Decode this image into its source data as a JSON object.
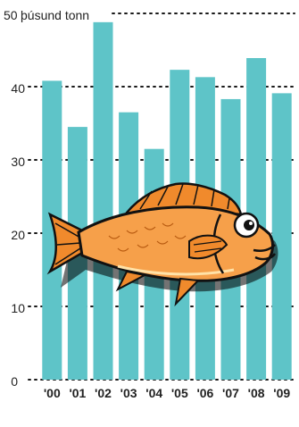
{
  "chart_data": {
    "type": "bar",
    "categories": [
      "'00",
      "'01",
      "'02",
      "'03",
      "'04",
      "'05",
      "'06",
      "'07",
      "'08",
      "'09"
    ],
    "values": [
      40.8,
      34.5,
      48.8,
      36.5,
      31.5,
      42.3,
      41.3,
      38.3,
      43.9,
      39.1
    ],
    "y_ticks": [
      0,
      10,
      20,
      30,
      40,
      50
    ],
    "y_tick_labels": [
      "0",
      "10",
      "20",
      "30",
      "40",
      "50"
    ],
    "ylabel": "þúsund tonn",
    "ylim": [
      0,
      50
    ],
    "grid": true,
    "bar_color": "#5ec4c8",
    "grid_color": "#1a1a1a",
    "illustration": "redfish-icon"
  }
}
